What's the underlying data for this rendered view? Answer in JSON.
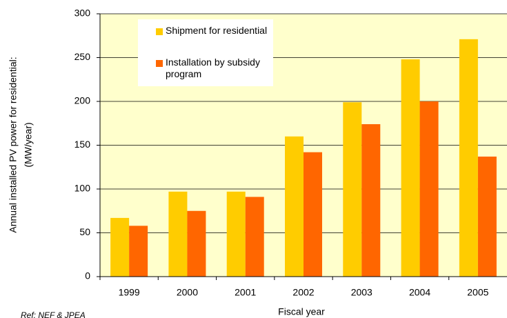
{
  "chart_data": {
    "type": "bar",
    "y_label": [
      "Annual installed PV power for residential:",
      "(MW/year)"
    ],
    "x_label": "Fiscal year",
    "note": "Ref: NEF & JPEA",
    "categories": [
      "1999",
      "2000",
      "2001",
      "2002",
      "2003",
      "2004",
      "2005"
    ],
    "series": [
      {
        "name": "Shipment for residential",
        "color": "#ffcc00",
        "values": [
          67,
          97,
          97,
          160,
          199,
          248,
          271
        ]
      },
      {
        "name": "Installation by subsidy program",
        "color": "#ff6600",
        "values": [
          58,
          75,
          91,
          142,
          174,
          200,
          137
        ]
      }
    ],
    "ylim": [
      0,
      300
    ],
    "yticks": [
      0,
      50,
      100,
      150,
      200,
      250,
      300
    ],
    "grid": true,
    "background": "#ffffcc"
  }
}
